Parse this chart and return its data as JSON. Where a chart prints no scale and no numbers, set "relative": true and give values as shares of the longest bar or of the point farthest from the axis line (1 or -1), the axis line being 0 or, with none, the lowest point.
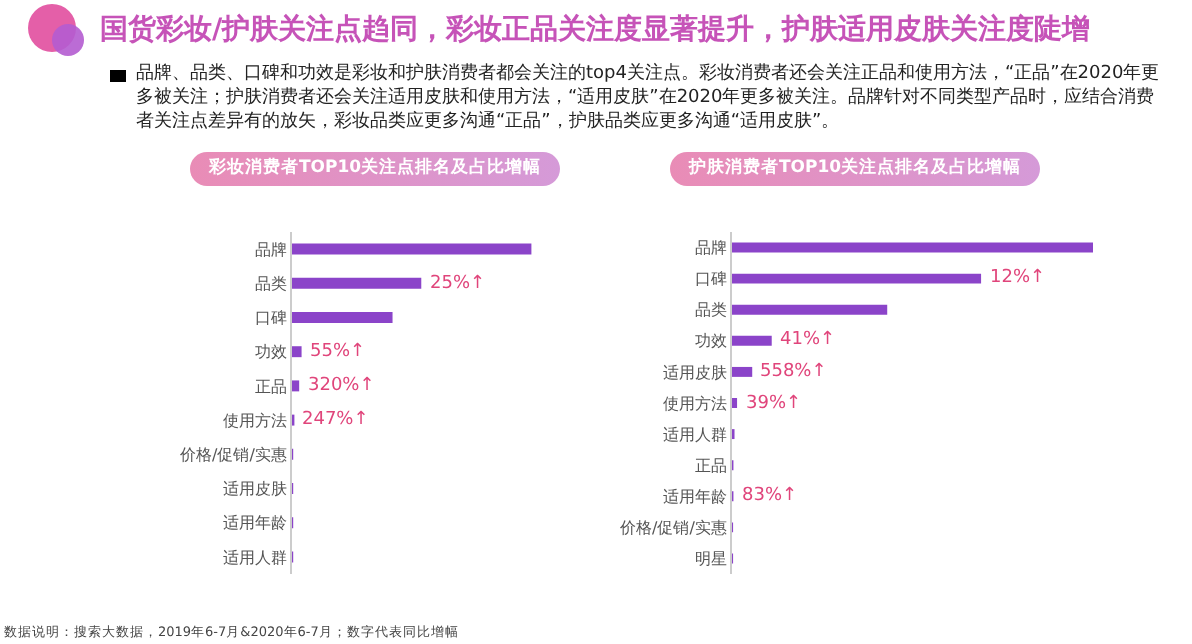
{
  "chart_data": [
    {
      "type": "other",
      "title": "国货彩妆/护肤关注点趋同，彩妆正品关注度显著提升，护肤适用皮肤关注度陡增",
      "subtitle": "品牌、品类、口碑和功效是彩妆和护肤消费者都会关注的top4关注点。彩妆消费者还会关注正品和使用方法，“正品”在2020年更多被关注；护肤消费者还会关注适用皮肤和使用方法，“适用皮肤”在2020年更多被关注。品牌针对不同类型产品时，应结合消费者关注点差异有的放矢，彩妆品类应更多沟通“正品”，护肤品类应更多沟通“适用皮肤”。",
      "annotations": [
        "数据说明：搜索大数据，2019年6-7月&2020年6-7月；数字代表同比增幅"
      ]
    },
    {
      "type": "bar",
      "orientation": "horizontal",
      "relative": true,
      "title": "彩妆消费者TOP10关注点排名及占比增幅",
      "categories": [
        "品牌",
        "品类",
        "口碑",
        "功效",
        "正品",
        "使用方法",
        "价格/促销/实惠",
        "适用皮肤",
        "适用年龄",
        "适用人群"
      ],
      "values": [
        1,
        0.54,
        0.42,
        0.04,
        0.03,
        0.01,
        0.005,
        0.005,
        0.005,
        0.005
      ],
      "color": "#8b44c9",
      "annotations": [
        {
          "text": "25%↑",
          "x": 0.54,
          "y": "品类"
        },
        {
          "text": "55%↑",
          "x": 0.04,
          "y": "功效"
        },
        {
          "text": "320%↑",
          "x": 0.03,
          "y": "正品"
        },
        {
          "text": "247%↑",
          "x": 0.01,
          "y": "使用方法"
        }
      ]
    },
    {
      "type": "bar",
      "orientation": "horizontal",
      "relative": true,
      "title": "护肤消费者TOP10关注点排名及占比增幅",
      "categories": [
        "品牌",
        "口碑",
        "品类",
        "功效",
        "适用皮肤",
        "使用方法",
        "适用人群",
        "正品",
        "适用年龄",
        "价格/促销/实惠",
        "明星"
      ],
      "values": [
        1,
        0.69,
        0.43,
        0.11,
        0.056,
        0.014,
        0.007,
        0.004,
        0.004,
        0.003,
        0.003
      ],
      "color": "#8b44c9",
      "annotations": [
        {
          "text": "12%↑",
          "x": 0.69,
          "y": "口碑"
        },
        {
          "text": "41%↑",
          "x": 0.11,
          "y": "功效"
        },
        {
          "text": "558%↑",
          "x": 0.056,
          "y": "适用皮肤"
        },
        {
          "text": "39%↑",
          "x": 0.014,
          "y": "使用方法"
        },
        {
          "text": "83%↑",
          "x": 0.004,
          "y": "适用年龄"
        }
      ]
    }
  ]
}
